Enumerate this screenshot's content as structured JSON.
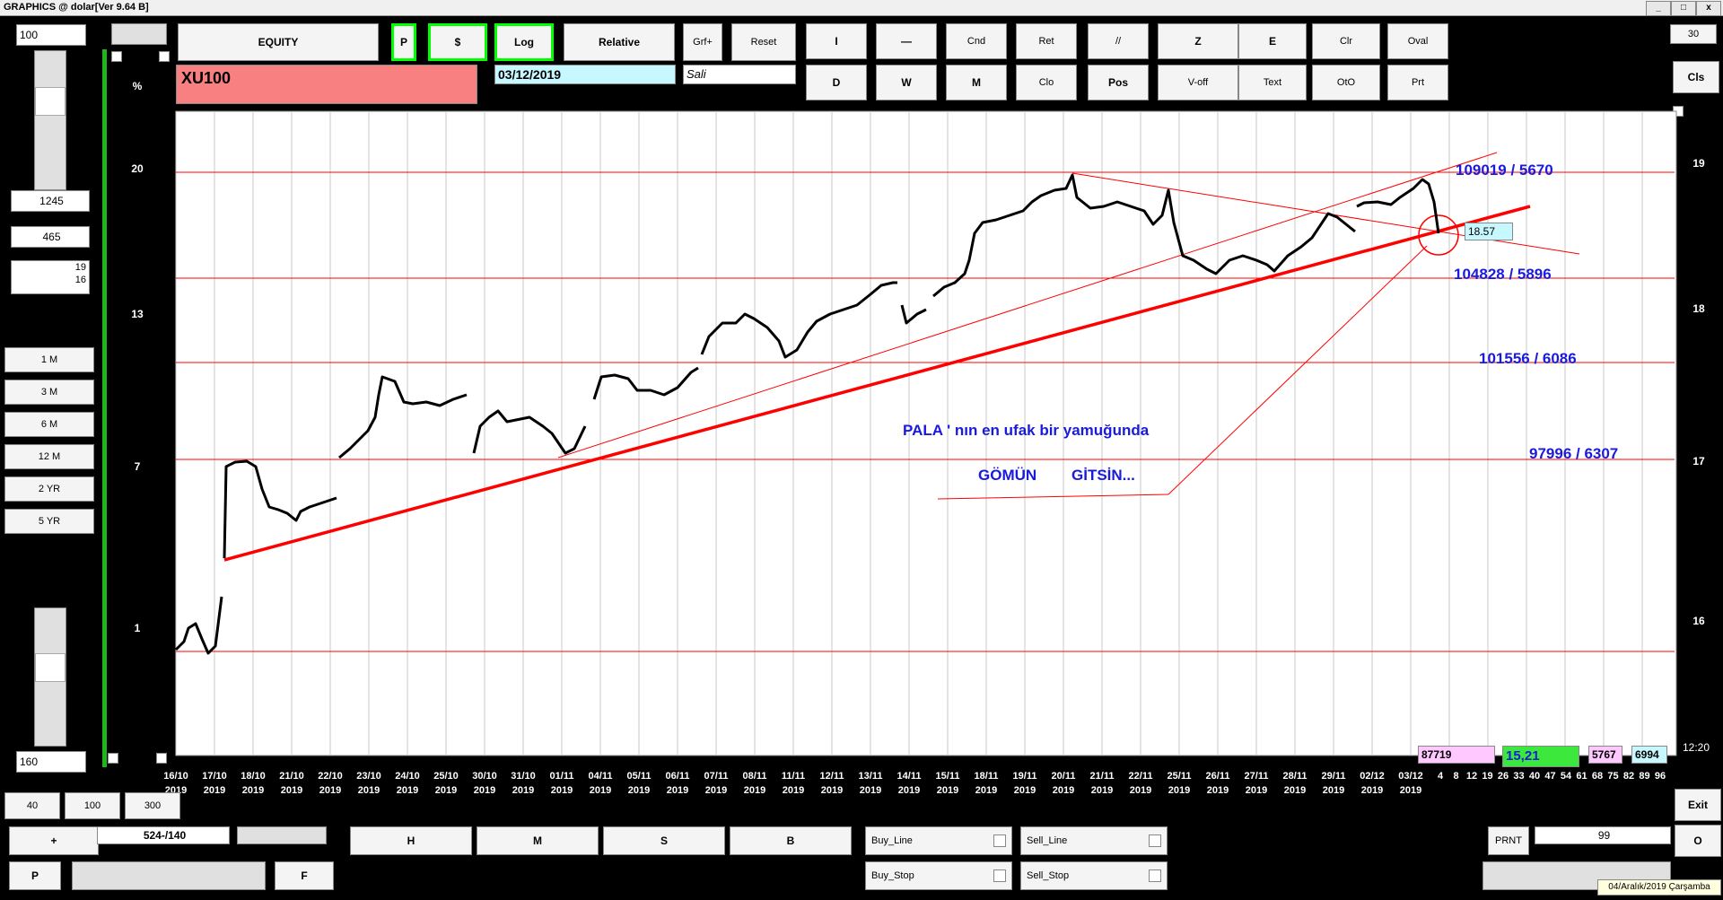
{
  "window": {
    "title": "GRAPHICS  @ dolar[Ver 9.64 B]",
    "controls": [
      "_",
      "□",
      "x"
    ]
  },
  "left_panel": {
    "top_value": "100",
    "val1": "1245",
    "val2": "465",
    "val3a": "19",
    "val3b": "16",
    "periods": [
      "1 M",
      "3 M",
      "6 M",
      "12 M",
      "2 YR",
      "5 YR"
    ],
    "bottom_value": "160"
  },
  "toolbar": {
    "equity": "EQUITY",
    "p": "P",
    "dollar": "$",
    "log": "Log",
    "relative": "Relative",
    "grf": "Grf+",
    "reset": "Reset",
    "row1": [
      "I",
      "—",
      "Cnd",
      "Ret",
      "//",
      "Z",
      "E",
      "Clr",
      "Oval"
    ],
    "row2": [
      "D",
      "W",
      "M",
      "Clo",
      "Pos",
      "V-off",
      "Text",
      "OtO",
      "Prt"
    ],
    "spinner_value": "30",
    "cls": "Cls"
  },
  "symbol": "XU100",
  "date": "03/12/2019",
  "day": "Sali",
  "chart_data": {
    "type": "line",
    "y_left_ticks": [
      "%",
      "20",
      "13",
      "7",
      "1"
    ],
    "y_right_ticks": [
      "19",
      "18",
      "17",
      "16"
    ],
    "x_ticks": [
      [
        "16/10",
        "2019"
      ],
      [
        "17/10",
        "2019"
      ],
      [
        "18/10",
        "2019"
      ],
      [
        "21/10",
        "2019"
      ],
      [
        "22/10",
        "2019"
      ],
      [
        "23/10",
        "2019"
      ],
      [
        "24/10",
        "2019"
      ],
      [
        "25/10",
        "2019"
      ],
      [
        "30/10",
        "2019"
      ],
      [
        "31/10",
        "2019"
      ],
      [
        "01/11",
        "2019"
      ],
      [
        "04/11",
        "2019"
      ],
      [
        "05/11",
        "2019"
      ],
      [
        "06/11",
        "2019"
      ],
      [
        "07/11",
        "2019"
      ],
      [
        "08/11",
        "2019"
      ],
      [
        "11/11",
        "2019"
      ],
      [
        "12/11",
        "2019"
      ],
      [
        "13/11",
        "2019"
      ],
      [
        "14/11",
        "2019"
      ],
      [
        "15/11",
        "2019"
      ],
      [
        "18/11",
        "2019"
      ],
      [
        "19/11",
        "2019"
      ],
      [
        "20/11",
        "2019"
      ],
      [
        "21/11",
        "2019"
      ],
      [
        "22/11",
        "2019"
      ],
      [
        "25/11",
        "2019"
      ],
      [
        "26/11",
        "2019"
      ],
      [
        "27/11",
        "2019"
      ],
      [
        "28/11",
        "2019"
      ],
      [
        "29/11",
        "2019"
      ],
      [
        "02/12",
        "2019"
      ],
      [
        "03/12",
        "2019"
      ]
    ],
    "x_minutes": [
      "4",
      "8",
      "12",
      "19",
      "26",
      "33",
      "40",
      "47",
      "54",
      "61",
      "68",
      "75",
      "82",
      "89",
      "96"
    ],
    "last_value": "18.57",
    "levels": [
      {
        "label": "109019 / 5670"
      },
      {
        "label": "104828 / 5896"
      },
      {
        "label": "101556 / 6086"
      },
      {
        "label": "97996 / 6307"
      }
    ],
    "annotation1": "PALA  ' nın en ufak bir yamuğunda",
    "annotation2a": "GÖMÜN",
    "annotation2b": "GİTSİN...",
    "line_color": "#ff0000",
    "text_color": "#1a1adc"
  },
  "status": {
    "v1": "87719",
    "v2": "15,21",
    "v3": "5767",
    "v4": "6994",
    "time": "12:20"
  },
  "bottom": {
    "b40": "40",
    "b100": "100",
    "b300": "300",
    "plus": "+",
    "ratio": "524-/140",
    "p": "P",
    "f": "F",
    "h": "H",
    "m": "M",
    "s": "S",
    "b": "B",
    "buy_line": "Buy_Line",
    "sell_line": "Sell_Line",
    "buy_stop": "Buy_Stop",
    "sell_stop": "Sell_Stop",
    "prnt": "PRNT",
    "prnt_val": "99",
    "exit": "Exit",
    "o": "O",
    "taskbar_date": "04/Aralık/2019 Çarşamba"
  }
}
